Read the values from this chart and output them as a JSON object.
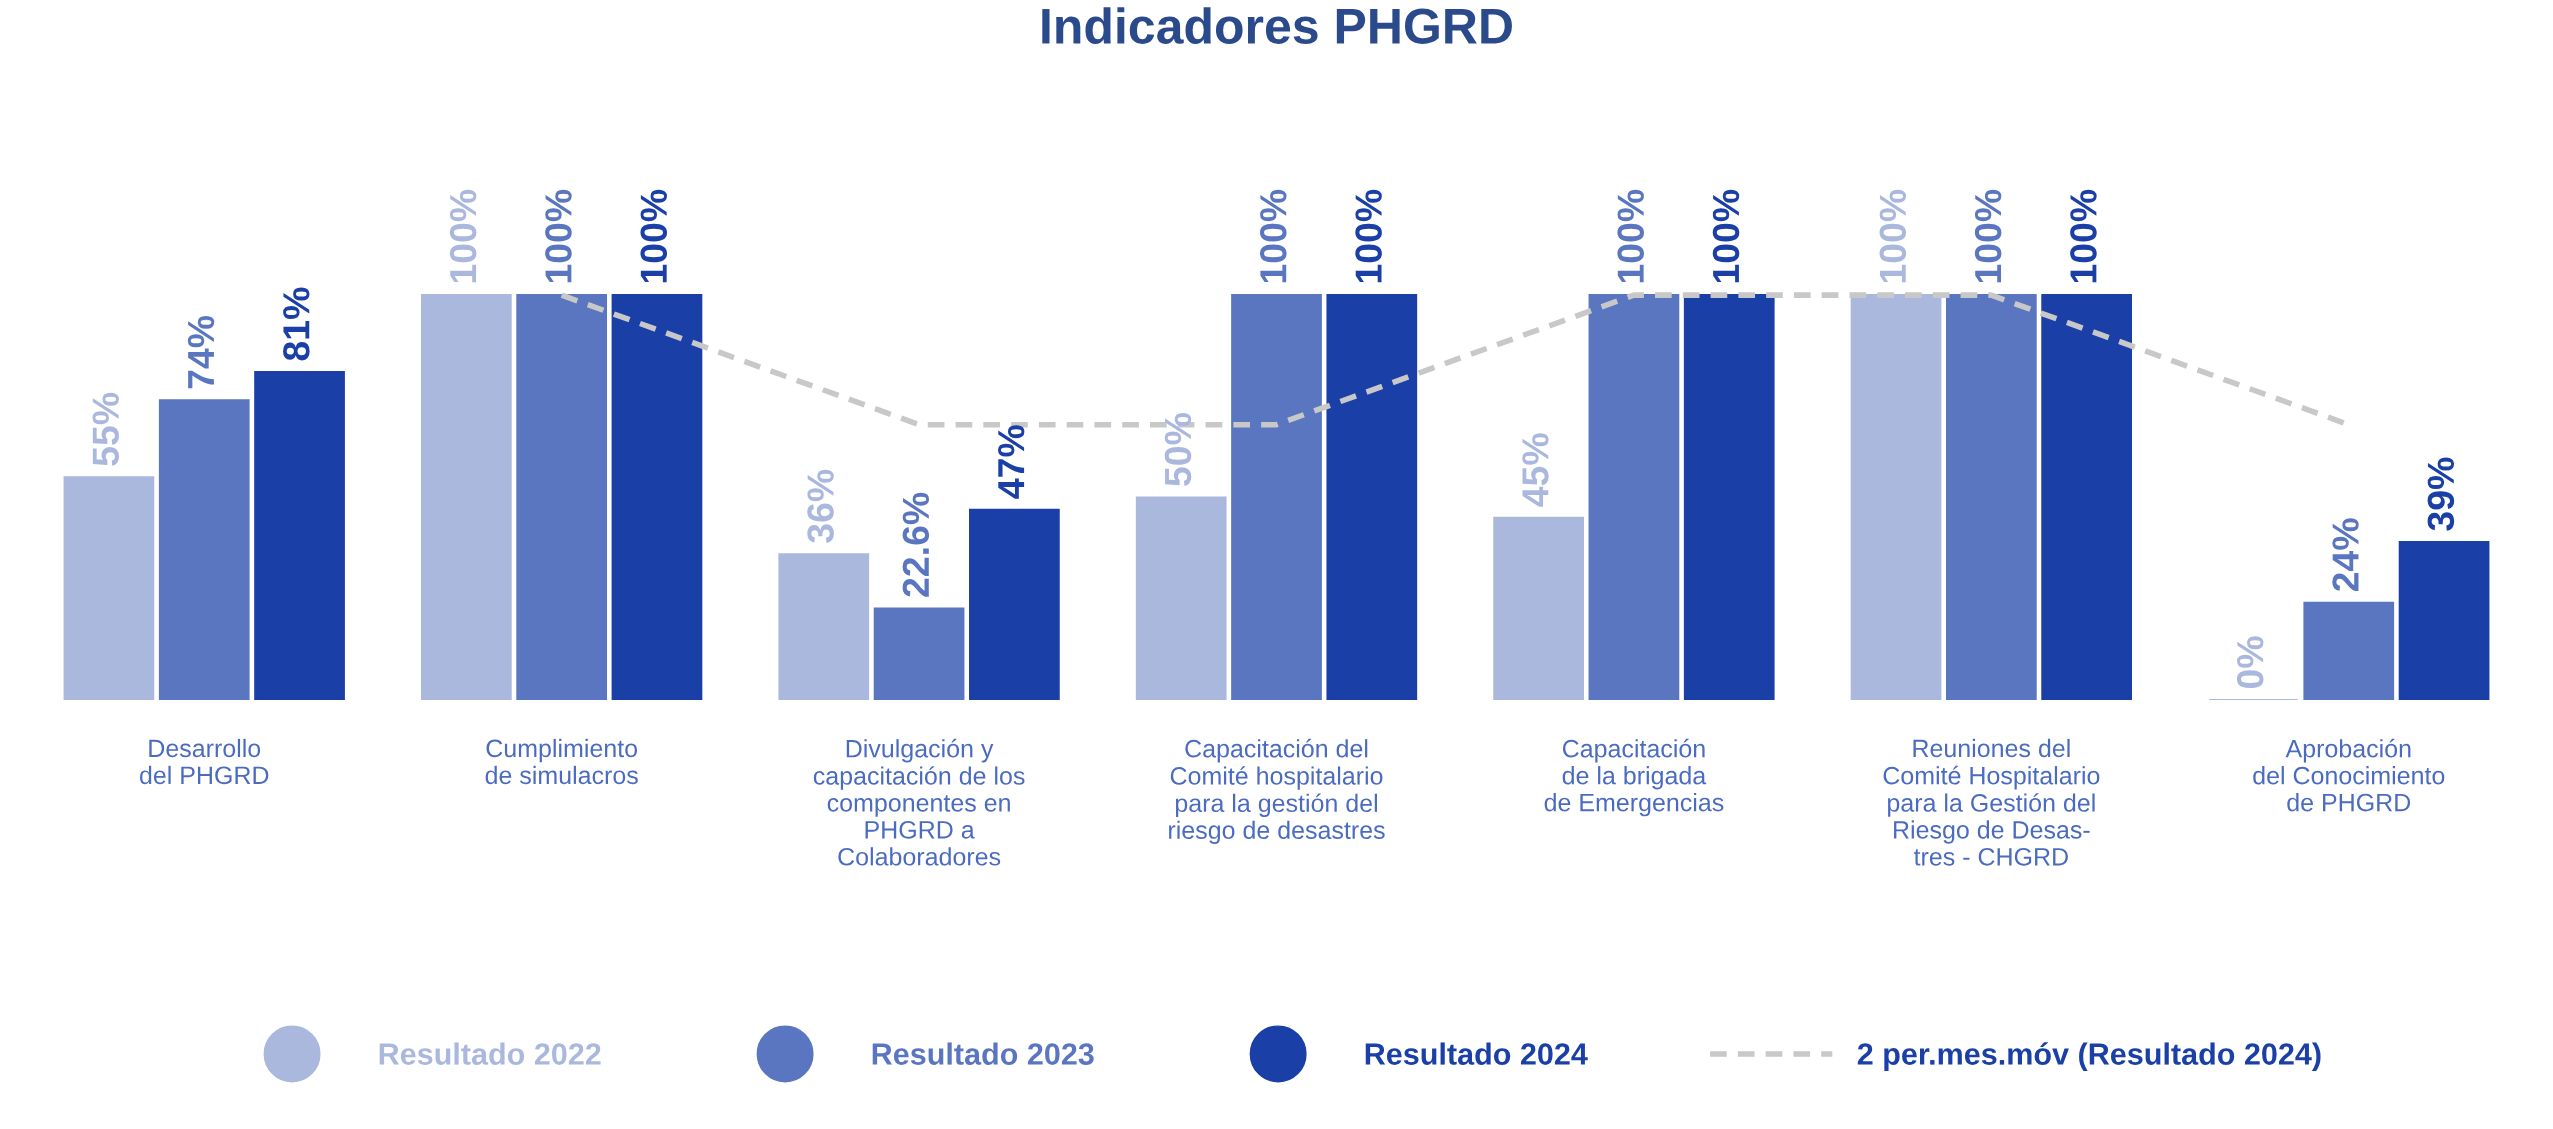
{
  "chart_data": {
    "type": "bar",
    "title": "Indicadores PHGRD",
    "categories": [
      "Desarrollo\ndel PHGRD",
      "Cumplimiento\nde simulacros",
      "Divulgación y\ncapacitación de los\ncomponentes en\nPHGRD a\nColaboradores",
      "Capacitación del\nComité hospitalario\npara la gestión del\nriesgo de desastres",
      "Capacitación\nde la brigada\nde Emergencias",
      "Reuniones del\nComité Hospitalario\npara la Gestión del\nRiesgo de Desas-\ntres - CHGRD",
      "Aprobación\ndel Conocimiento\nde PHGRD"
    ],
    "series": [
      {
        "name": "Resultado 2022",
        "color": "#aab8de",
        "values": [
          55,
          100,
          36,
          50,
          45,
          100,
          0
        ],
        "value_labels": [
          "55%",
          "100%",
          "36%",
          "50%",
          "45%",
          "100%",
          "0%"
        ]
      },
      {
        "name": "Resultado 2023",
        "color": "#5a76c0",
        "values": [
          74,
          100,
          22.6,
          100,
          100,
          100,
          24
        ],
        "value_labels": [
          "74%",
          "100%",
          "22.6%",
          "100%",
          "100%",
          "100%",
          "24%"
        ]
      },
      {
        "name": "Resultado 2024",
        "color": "#1a3fa6",
        "values": [
          81,
          100,
          47,
          100,
          100,
          100,
          39
        ],
        "value_labels": [
          "81%",
          "100%",
          "47%",
          "100%",
          "100%",
          "100%",
          "39%"
        ]
      },
      {
        "name": "2 per.mes.móv (Resultado 2024)",
        "type": "line",
        "line_style": "dashed",
        "color": "#c8c8c8",
        "values": [
          null,
          100,
          68,
          68,
          100,
          100,
          68
        ]
      }
    ],
    "legend": "bottom",
    "grid": false,
    "tick_labels": "x"
  }
}
